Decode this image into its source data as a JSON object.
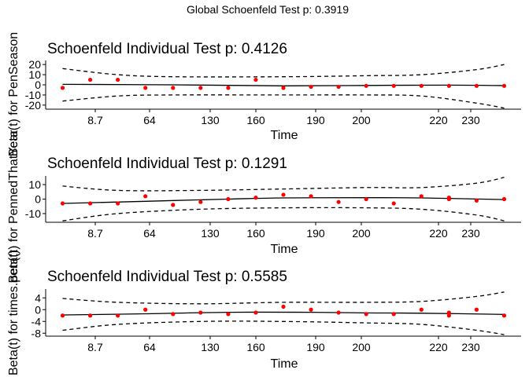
{
  "figure": {
    "global_title": "Global Schoenfeld Test p: 0.3919"
  },
  "chart_data": [
    {
      "type": "scatter",
      "title": "Schoenfeld Individual Test p: 0.4126",
      "xlabel": "Time",
      "ylabel": "Beta(t) for PenSeason",
      "xticks": [
        "8.7",
        "64",
        "130",
        "160",
        "190",
        "200",
        "220",
        "230"
      ],
      "yticks": [
        20,
        10,
        0,
        -10,
        -20
      ],
      "ylim": [
        -24,
        24
      ],
      "points": [
        {
          "x": 1,
          "y": -3
        },
        {
          "x": 2,
          "y": 5
        },
        {
          "x": 3,
          "y": 5
        },
        {
          "x": 4,
          "y": -3
        },
        {
          "x": 5,
          "y": -3
        },
        {
          "x": 6,
          "y": -3
        },
        {
          "x": 7,
          "y": -3
        },
        {
          "x": 8,
          "y": 5
        },
        {
          "x": 9,
          "y": -3
        },
        {
          "x": 10,
          "y": -2
        },
        {
          "x": 11,
          "y": -2
        },
        {
          "x": 12,
          "y": -1
        },
        {
          "x": 13,
          "y": -1
        },
        {
          "x": 14,
          "y": -1
        },
        {
          "x": 15,
          "y": -1
        },
        {
          "x": 16,
          "y": -1
        },
        {
          "x": 17,
          "y": -1
        }
      ],
      "fit": [
        {
          "x": 1,
          "y": 0.5
        },
        {
          "x": 5,
          "y": 0.0
        },
        {
          "x": 9,
          "y": -1.0
        },
        {
          "x": 12,
          "y": -0.6
        },
        {
          "x": 15,
          "y": -0.3
        },
        {
          "x": 17,
          "y": -0.8
        }
      ],
      "upper": [
        {
          "x": 1,
          "y": 16
        },
        {
          "x": 3,
          "y": 10
        },
        {
          "x": 5,
          "y": 8
        },
        {
          "x": 9,
          "y": 8
        },
        {
          "x": 12,
          "y": 9
        },
        {
          "x": 14,
          "y": 10
        },
        {
          "x": 16,
          "y": 15
        },
        {
          "x": 17,
          "y": 20
        }
      ],
      "lower": [
        {
          "x": 1,
          "y": -16
        },
        {
          "x": 3,
          "y": -11
        },
        {
          "x": 5,
          "y": -10
        },
        {
          "x": 9,
          "y": -10
        },
        {
          "x": 12,
          "y": -10
        },
        {
          "x": 14,
          "y": -11
        },
        {
          "x": 16,
          "y": -18
        },
        {
          "x": 17,
          "y": -23
        }
      ]
    },
    {
      "type": "scatter",
      "title": "Schoenfeld Individual Test p: 0.1291",
      "xlabel": "Time",
      "ylabel": "Beta(t) for PennedThatYear",
      "xticks": [
        "8.7",
        "64",
        "130",
        "160",
        "190",
        "200",
        "220",
        "230"
      ],
      "yticks": [
        10,
        0,
        -10
      ],
      "ylim": [
        -16,
        16
      ],
      "points": [
        {
          "x": 1,
          "y": -3
        },
        {
          "x": 2,
          "y": -3
        },
        {
          "x": 3,
          "y": -3
        },
        {
          "x": 4,
          "y": 2
        },
        {
          "x": 5,
          "y": -4
        },
        {
          "x": 6,
          "y": -2
        },
        {
          "x": 7,
          "y": 0
        },
        {
          "x": 8,
          "y": 1
        },
        {
          "x": 9,
          "y": 3
        },
        {
          "x": 10,
          "y": 2
        },
        {
          "x": 11,
          "y": -2
        },
        {
          "x": 12,
          "y": 0
        },
        {
          "x": 13,
          "y": -3
        },
        {
          "x": 14,
          "y": 2
        },
        {
          "x": 15,
          "y": 1
        },
        {
          "x": 15,
          "y": 0
        },
        {
          "x": 16,
          "y": -1
        },
        {
          "x": 17,
          "y": 0
        }
      ],
      "fit": [
        {
          "x": 1,
          "y": -3
        },
        {
          "x": 4,
          "y": -1.5
        },
        {
          "x": 7,
          "y": 0
        },
        {
          "x": 9,
          "y": 0.8
        },
        {
          "x": 12,
          "y": 1.0
        },
        {
          "x": 14,
          "y": 0.8
        },
        {
          "x": 17,
          "y": -0.3
        }
      ],
      "upper": [
        {
          "x": 1,
          "y": 9
        },
        {
          "x": 3,
          "y": 6
        },
        {
          "x": 6,
          "y": 6
        },
        {
          "x": 9,
          "y": 7
        },
        {
          "x": 12,
          "y": 8
        },
        {
          "x": 14,
          "y": 8
        },
        {
          "x": 16,
          "y": 11
        },
        {
          "x": 17,
          "y": 15
        }
      ],
      "lower": [
        {
          "x": 1,
          "y": -15
        },
        {
          "x": 3,
          "y": -10
        },
        {
          "x": 6,
          "y": -7
        },
        {
          "x": 9,
          "y": -6
        },
        {
          "x": 12,
          "y": -6
        },
        {
          "x": 14,
          "y": -7
        },
        {
          "x": 16,
          "y": -11
        },
        {
          "x": 17,
          "y": -15
        }
      ]
    },
    {
      "type": "scatter",
      "title": "Schoenfeld Individual Test p: 0.5585",
      "xlabel": "Time",
      "ylabel": "Beta(t) for times.pen(t)",
      "xticks": [
        "8.7",
        "64",
        "130",
        "160",
        "190",
        "200",
        "220",
        "230"
      ],
      "yticks": [
        4,
        0,
        -4,
        -8
      ],
      "ylim": [
        -9,
        7
      ],
      "points": [
        {
          "x": 1,
          "y": -2
        },
        {
          "x": 2,
          "y": -2
        },
        {
          "x": 3,
          "y": -2
        },
        {
          "x": 4,
          "y": 0
        },
        {
          "x": 5,
          "y": -1.5
        },
        {
          "x": 6,
          "y": -1
        },
        {
          "x": 7,
          "y": -1.5
        },
        {
          "x": 8,
          "y": -1
        },
        {
          "x": 9,
          "y": 1
        },
        {
          "x": 10,
          "y": 0
        },
        {
          "x": 11,
          "y": -1
        },
        {
          "x": 12,
          "y": -1.5
        },
        {
          "x": 13,
          "y": -1.5
        },
        {
          "x": 14,
          "y": 0
        },
        {
          "x": 15,
          "y": -2
        },
        {
          "x": 15,
          "y": -1
        },
        {
          "x": 16,
          "y": 0
        },
        {
          "x": 17,
          "y": -2
        }
      ],
      "fit": [
        {
          "x": 1,
          "y": -1.8
        },
        {
          "x": 4,
          "y": -1.4
        },
        {
          "x": 7,
          "y": -0.9
        },
        {
          "x": 10,
          "y": -0.9
        },
        {
          "x": 12,
          "y": -1.1
        },
        {
          "x": 14,
          "y": -1.2
        },
        {
          "x": 17,
          "y": -1.6
        }
      ],
      "upper": [
        {
          "x": 1,
          "y": 3.8
        },
        {
          "x": 3,
          "y": 2.5
        },
        {
          "x": 6,
          "y": 2.0
        },
        {
          "x": 9,
          "y": 2.5
        },
        {
          "x": 12,
          "y": 2.5
        },
        {
          "x": 14,
          "y": 2.8
        },
        {
          "x": 16,
          "y": 4.5
        },
        {
          "x": 17,
          "y": 6
        }
      ],
      "lower": [
        {
          "x": 1,
          "y": -7
        },
        {
          "x": 3,
          "y": -5
        },
        {
          "x": 6,
          "y": -4
        },
        {
          "x": 9,
          "y": -4
        },
        {
          "x": 12,
          "y": -4.5
        },
        {
          "x": 14,
          "y": -5
        },
        {
          "x": 16,
          "y": -7
        },
        {
          "x": 17,
          "y": -8.5
        }
      ]
    }
  ]
}
